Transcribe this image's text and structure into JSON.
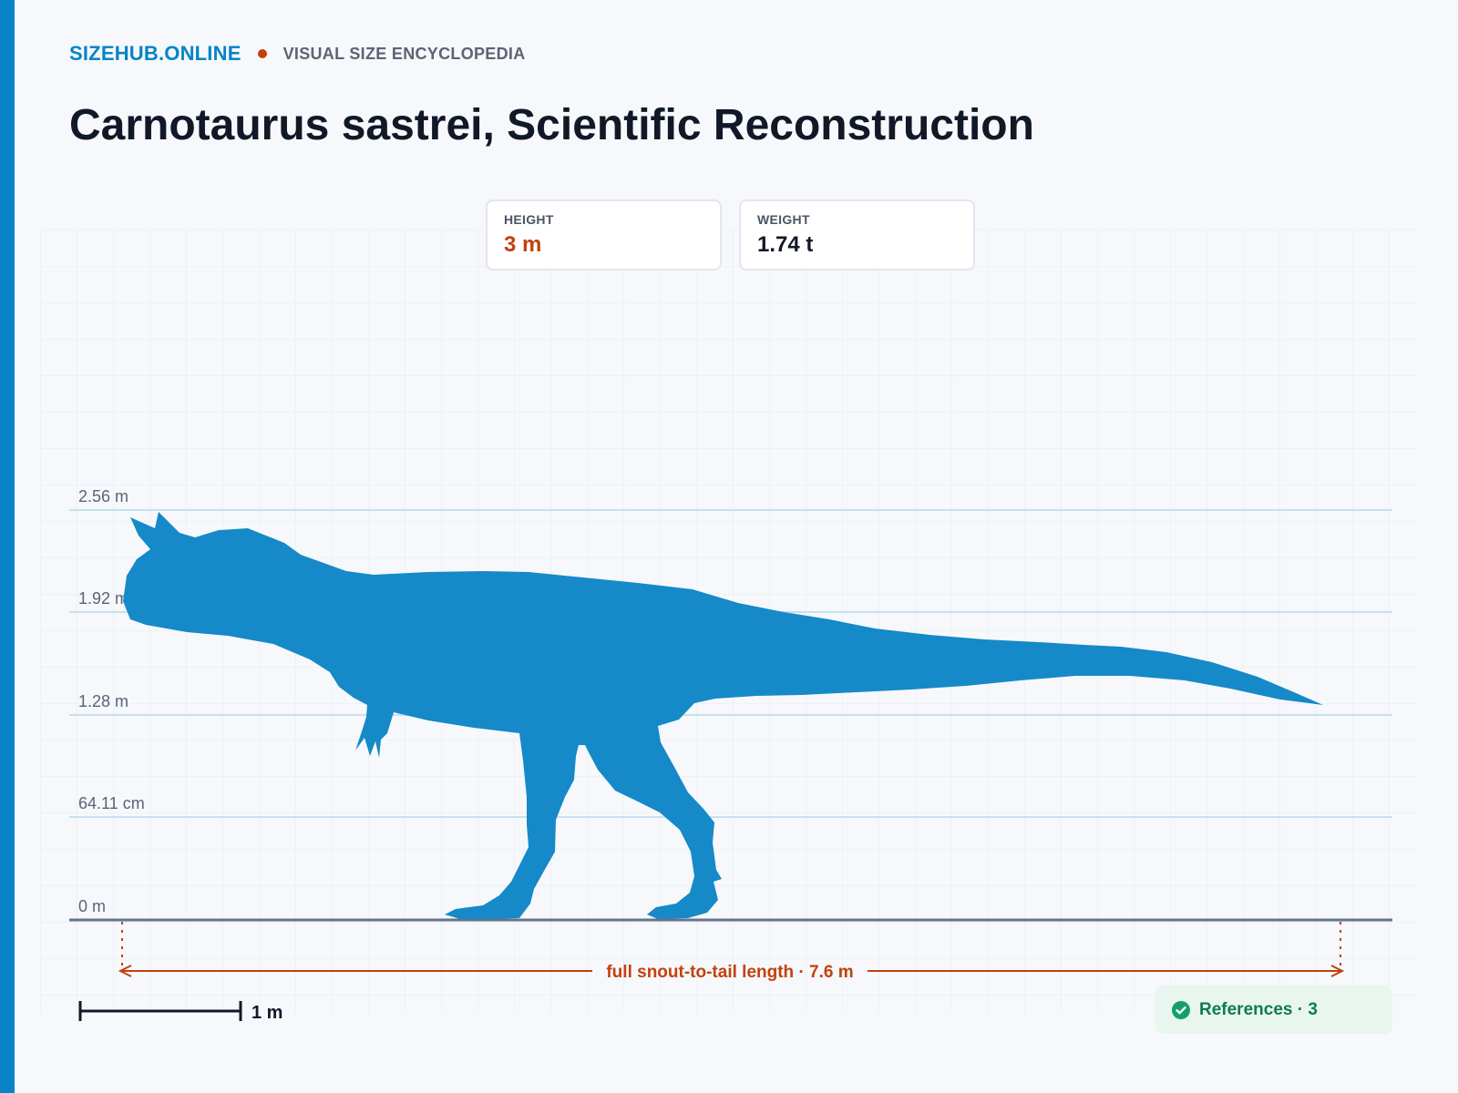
{
  "site": {
    "brand": "SIZEHUB.ONLINE",
    "tagline": "VISUAL SIZE ENCYCLOPEDIA",
    "accent": "#0784c7"
  },
  "title": "Carnotaurus sastrei, Scientific Reconstruction",
  "stats": [
    {
      "label": "HEIGHT",
      "value": "3 m",
      "color": "#c2410c"
    },
    {
      "label": "WEIGHT",
      "value": "1.74 t",
      "color": "#111827"
    }
  ],
  "scale": {
    "levels": [
      {
        "label": "2.56 m"
      },
      {
        "label": "1.92 m"
      },
      {
        "label": "1.28 m"
      },
      {
        "label": "64.11 cm"
      },
      {
        "label": "0 m"
      }
    ],
    "length_label": "full snout-to-tail length · 7.6 m",
    "scale_bar_label": "1 m",
    "silhouette_color": "#1689c8",
    "silhouette_icon": "carnotaurus-silhouette-icon"
  },
  "references": {
    "label": "References · 3",
    "icon": "check-circle-icon"
  }
}
